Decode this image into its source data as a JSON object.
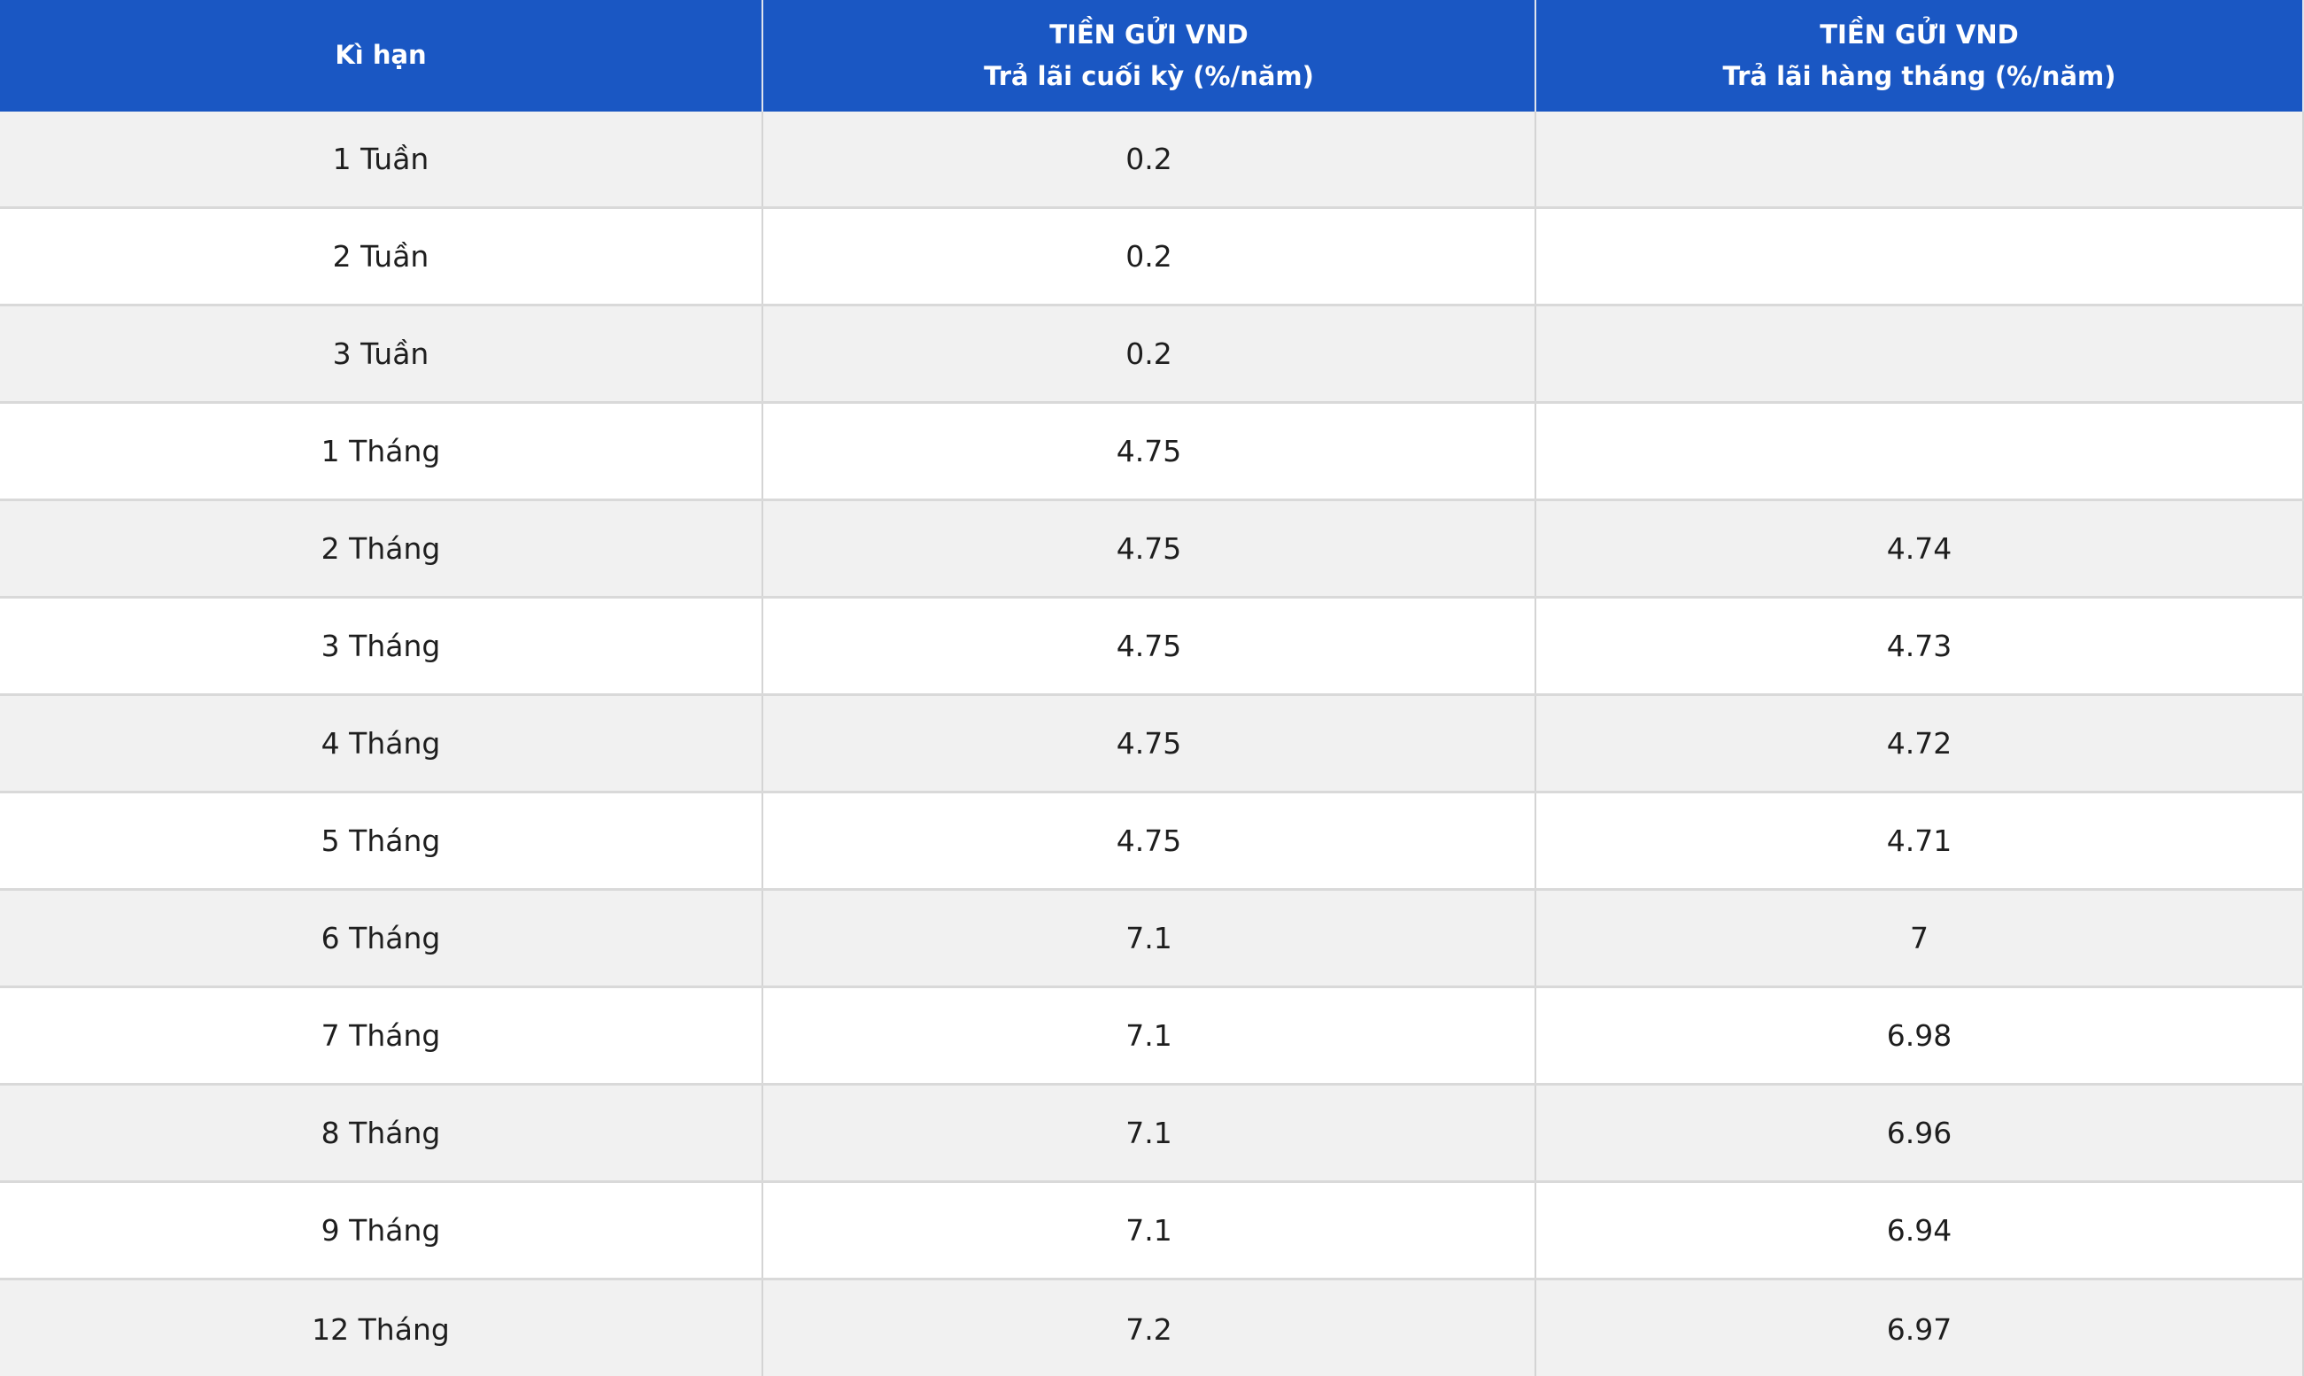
{
  "table": {
    "header": {
      "term": "Kì hạn",
      "end_of_term_line1": "TIỀN GỬI VND",
      "end_of_term_line2": "Trả lãi cuối kỳ (%/năm)",
      "monthly_line1": "TIỀN GỬI VND",
      "monthly_line2": "Trả lãi hàng tháng (%/năm)"
    },
    "rows": [
      {
        "term": "1 Tuần",
        "end_of_term": "0.2",
        "monthly": ""
      },
      {
        "term": "2 Tuần",
        "end_of_term": "0.2",
        "monthly": ""
      },
      {
        "term": "3 Tuần",
        "end_of_term": "0.2",
        "monthly": ""
      },
      {
        "term": "1 Tháng",
        "end_of_term": "4.75",
        "monthly": ""
      },
      {
        "term": "2 Tháng",
        "end_of_term": "4.75",
        "monthly": "4.74"
      },
      {
        "term": "3 Tháng",
        "end_of_term": "4.75",
        "monthly": "4.73"
      },
      {
        "term": "4 Tháng",
        "end_of_term": "4.75",
        "monthly": "4.72"
      },
      {
        "term": "5 Tháng",
        "end_of_term": "4.75",
        "monthly": "4.71"
      },
      {
        "term": "6 Tháng",
        "end_of_term": "7.1",
        "monthly": "7"
      },
      {
        "term": "7 Tháng",
        "end_of_term": "7.1",
        "monthly": "6.98"
      },
      {
        "term": "8 Tháng",
        "end_of_term": "7.1",
        "monthly": "6.96"
      },
      {
        "term": "9 Tháng",
        "end_of_term": "7.1",
        "monthly": "6.94"
      },
      {
        "term": "12 Tháng",
        "end_of_term": "7.2",
        "monthly": "6.97"
      }
    ]
  },
  "chart_data": {
    "type": "table",
    "columns": [
      "Kì hạn",
      "TIỀN GỬI VND — Trả lãi cuối kỳ (%/năm)",
      "TIỀN GỬI VND — Trả lãi hàng tháng (%/năm)"
    ],
    "rows": [
      [
        "1 Tuần",
        0.2,
        null
      ],
      [
        "2 Tuần",
        0.2,
        null
      ],
      [
        "3 Tuần",
        0.2,
        null
      ],
      [
        "1 Tháng",
        4.75,
        null
      ],
      [
        "2 Tháng",
        4.75,
        4.74
      ],
      [
        "3 Tháng",
        4.75,
        4.73
      ],
      [
        "4 Tháng",
        4.75,
        4.72
      ],
      [
        "5 Tháng",
        4.75,
        4.71
      ],
      [
        "6 Tháng",
        7.1,
        7
      ],
      [
        "7 Tháng",
        7.1,
        6.98
      ],
      [
        "8 Tháng",
        7.1,
        6.96
      ],
      [
        "9 Tháng",
        7.1,
        6.94
      ],
      [
        "12 Tháng",
        7.2,
        6.97
      ]
    ]
  },
  "colors": {
    "header_bg": "#1A57C3",
    "header_text": "#FFFFFF",
    "row_bg": "#FFFFFF",
    "row_alt_bg": "#F1F1F1",
    "border": "#D9D9D9",
    "text": "#1E1E1E"
  }
}
